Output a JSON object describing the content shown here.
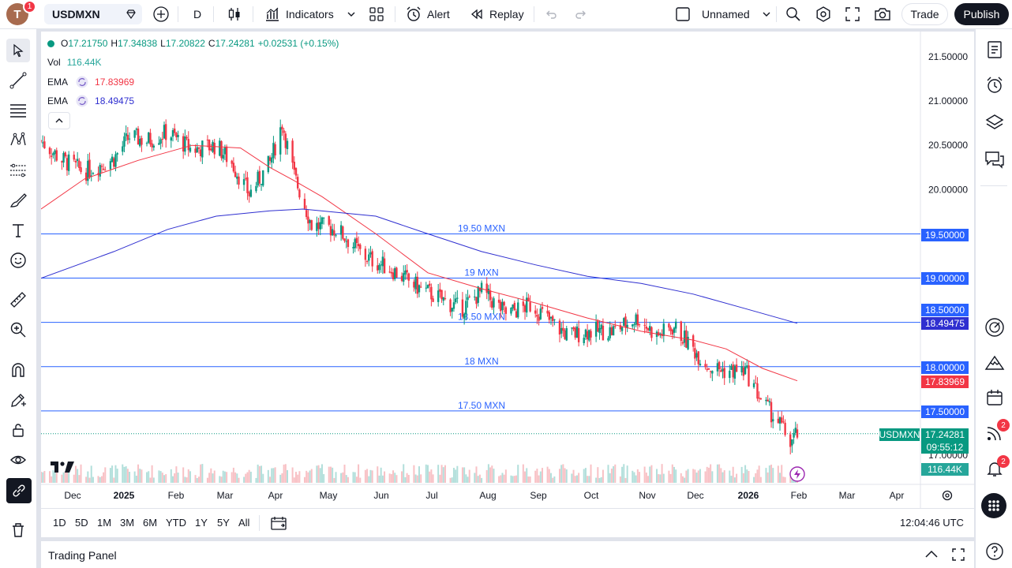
{
  "header": {
    "avatar_letter": "T",
    "avatar_badge": "1",
    "symbol": "USDMXN",
    "interval": "D",
    "indicators_label": "Indicators",
    "alert_label": "Alert",
    "replay_label": "Replay",
    "layout_name": "Unnamed",
    "trade_label": "Trade",
    "publish_label": "Publish"
  },
  "legend": {
    "open_label": "O",
    "open": "17.21750",
    "high_label": "H",
    "high": "17.34838",
    "low_label": "L",
    "low": "17.20822",
    "close_label": "C",
    "close": "17.24281",
    "change": "+0.02531 (+0.15%)",
    "vol_label": "Vol",
    "vol_value": "116.44K",
    "ema1_label": "EMA",
    "ema1_value": "17.83969",
    "ema2_label": "EMA",
    "ema2_value": "18.49475"
  },
  "price_axis": [
    "21.50000",
    "21.00000",
    "20.50000",
    "20.00000",
    "19.50000",
    "19.00000",
    "18.50000",
    "18.00000",
    "17.50000",
    "17.00000"
  ],
  "levels": [
    {
      "label": "19.50 MXN",
      "value": "19.50000"
    },
    {
      "label": "19 MXN",
      "value": "19.00000"
    },
    {
      "label": "18.50 MXN",
      "value": "18.50000"
    },
    {
      "label": "18 MXN",
      "value": "18.00000"
    },
    {
      "label": "17.50 MXN",
      "value": "17.50000"
    }
  ],
  "axis_badges": {
    "ema2": "18.49475",
    "ema1": "17.83969",
    "symbol_tag": "USDMXN",
    "last_price": "17.24281",
    "countdown": "09:55:12",
    "volume": "116.44K"
  },
  "time_axis": [
    "Dec",
    "2025",
    "Feb",
    "Mar",
    "Apr",
    "May",
    "Jun",
    "Jul",
    "Aug",
    "Sep",
    "Oct",
    "Nov",
    "Dec",
    "2026",
    "Feb",
    "Mar",
    "Apr"
  ],
  "ranges": [
    "1D",
    "5D",
    "1M",
    "3M",
    "6M",
    "YTD",
    "1Y",
    "5Y",
    "All"
  ],
  "clock": "12:04:46 UTC",
  "panel_title": "Trading Panel",
  "right_badges": {
    "alerts": "2",
    "notifications": "2"
  },
  "colors": {
    "up": "#089981",
    "down": "#f23645",
    "ema_fast": "#f23645",
    "ema_slow": "#2f2fd0",
    "level_line": "#2962ff",
    "accent": "#2962ff"
  },
  "chart_data": {
    "type": "candlestick",
    "symbol": "USDMXN",
    "interval": "1D",
    "ylim": [
      16.9,
      21.7
    ],
    "x_start": "2024-11-20",
    "x_end": "2026-01-30",
    "series": [
      {
        "name": "EMA",
        "points": [
          [
            "2024-11-20",
            19.78
          ],
          [
            "2024-12-15",
            20.12
          ],
          [
            "2025-01-15",
            20.33
          ],
          [
            "2025-02-15",
            20.5
          ],
          [
            "2025-03-15",
            20.47
          ],
          [
            "2025-04-01",
            20.25
          ],
          [
            "2025-04-15",
            20.1
          ],
          [
            "2025-05-01",
            19.92
          ],
          [
            "2025-06-01",
            19.5
          ],
          [
            "2025-07-01",
            19.06
          ],
          [
            "2025-08-01",
            18.88
          ],
          [
            "2025-09-01",
            18.72
          ],
          [
            "2025-10-01",
            18.55
          ],
          [
            "2025-11-01",
            18.4
          ],
          [
            "2025-12-01",
            18.3
          ],
          [
            "2025-12-20",
            18.2
          ],
          [
            "2026-01-10",
            17.98
          ],
          [
            "2026-01-30",
            17.84
          ]
        ]
      },
      {
        "name": "EMA",
        "points": [
          [
            "2024-11-20",
            19.0
          ],
          [
            "2025-01-01",
            19.3
          ],
          [
            "2025-02-01",
            19.55
          ],
          [
            "2025-03-01",
            19.7
          ],
          [
            "2025-04-01",
            19.76
          ],
          [
            "2025-04-20",
            19.78
          ],
          [
            "2025-06-01",
            19.7
          ],
          [
            "2025-07-01",
            19.5
          ],
          [
            "2025-08-01",
            19.3
          ],
          [
            "2025-09-01",
            19.15
          ],
          [
            "2025-10-01",
            19.02
          ],
          [
            "2025-11-01",
            18.94
          ],
          [
            "2025-12-01",
            18.82
          ],
          [
            "2026-01-01",
            18.65
          ],
          [
            "2026-01-30",
            18.49
          ]
        ]
      }
    ],
    "close_path": [
      [
        "2024-11-20",
        20.55
      ],
      [
        "2024-12-01",
        20.35
      ],
      [
        "2024-12-15",
        20.2
      ],
      [
        "2025-01-01",
        20.35
      ],
      [
        "2025-01-10",
        20.6
      ],
      [
        "2025-01-20",
        20.55
      ],
      [
        "2025-02-01",
        20.65
      ],
      [
        "2025-02-15",
        20.45
      ],
      [
        "2025-03-01",
        20.5
      ],
      [
        "2025-03-10",
        20.3
      ],
      [
        "2025-03-20",
        19.95
      ],
      [
        "2025-04-01",
        20.3
      ],
      [
        "2025-04-08",
        20.75
      ],
      [
        "2025-04-15",
        20.15
      ],
      [
        "2025-04-25",
        19.6
      ],
      [
        "2025-05-10",
        19.55
      ],
      [
        "2025-05-25",
        19.25
      ],
      [
        "2025-06-10",
        19.1
      ],
      [
        "2025-06-25",
        18.9
      ],
      [
        "2025-07-05",
        18.8
      ],
      [
        "2025-07-20",
        18.65
      ],
      [
        "2025-08-01",
        18.85
      ],
      [
        "2025-08-15",
        18.6
      ],
      [
        "2025-08-30",
        18.7
      ],
      [
        "2025-09-10",
        18.5
      ],
      [
        "2025-09-20",
        18.35
      ],
      [
        "2025-10-01",
        18.4
      ],
      [
        "2025-10-15",
        18.4
      ],
      [
        "2025-10-30",
        18.55
      ],
      [
        "2025-11-10",
        18.35
      ],
      [
        "2025-11-20",
        18.45
      ],
      [
        "2025-12-01",
        18.2
      ],
      [
        "2025-12-10",
        18.0
      ],
      [
        "2025-12-20",
        17.95
      ],
      [
        "2025-12-31",
        17.95
      ],
      [
        "2026-01-10",
        17.6
      ],
      [
        "2026-01-20",
        17.35
      ],
      [
        "2026-01-26",
        17.15
      ],
      [
        "2026-01-30",
        17.24
      ]
    ]
  }
}
